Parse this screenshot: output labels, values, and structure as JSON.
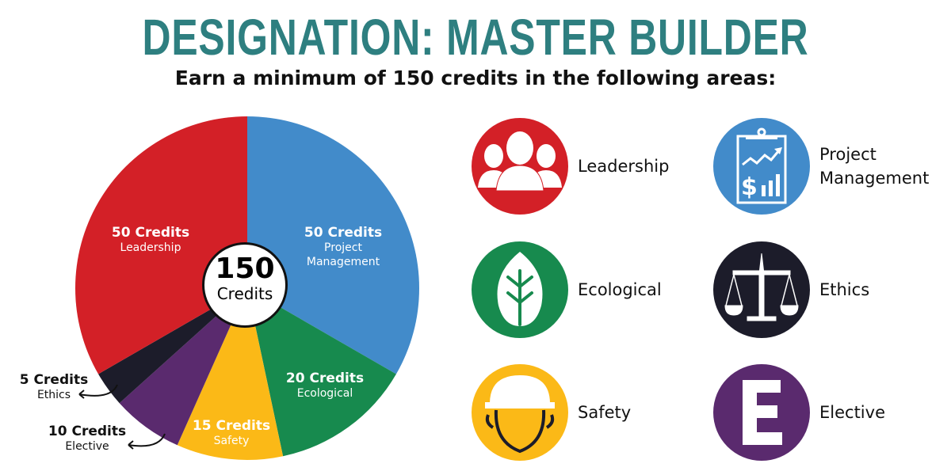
{
  "title": "DESIGNATION: MASTER BUILDER",
  "subtitle": "Earn a minimum of 150 credits in the following areas:",
  "center": {
    "value": "150",
    "unit": "Credits"
  },
  "chart_data": {
    "type": "pie",
    "total": 150,
    "slices": [
      {
        "name": "Project Management",
        "value": 50,
        "label": "50 Credits",
        "color": "#428bca"
      },
      {
        "name": "Ecological",
        "value": 20,
        "label": "20 Credits",
        "color": "#178a4e"
      },
      {
        "name": "Safety",
        "value": 15,
        "label": "15 Credits",
        "color": "#fbb917"
      },
      {
        "name": "Elective",
        "value": 10,
        "label": "10 Credits",
        "color": "#5a2a6e"
      },
      {
        "name": "Ethics",
        "value": 5,
        "label": "5 Credits",
        "color": "#1c1c2a"
      },
      {
        "name": "Leadership",
        "value": 50,
        "label": "50 Credits",
        "color": "#d32027"
      }
    ]
  },
  "legend": [
    {
      "label": "Leadership",
      "icon": "people-group-icon",
      "color": "#d32027"
    },
    {
      "label": "Project\nManagement",
      "icon": "clipboard-chart-icon",
      "color": "#428bca"
    },
    {
      "label": "Ecological",
      "icon": "leaf-icon",
      "color": "#178a4e"
    },
    {
      "label": "Ethics",
      "icon": "scales-icon",
      "color": "#1c1c2a"
    },
    {
      "label": "Safety",
      "icon": "hard-hat-icon",
      "color": "#fbb917"
    },
    {
      "label": "Elective",
      "icon": "letter-e-icon",
      "color": "#5a2a6e"
    }
  ]
}
